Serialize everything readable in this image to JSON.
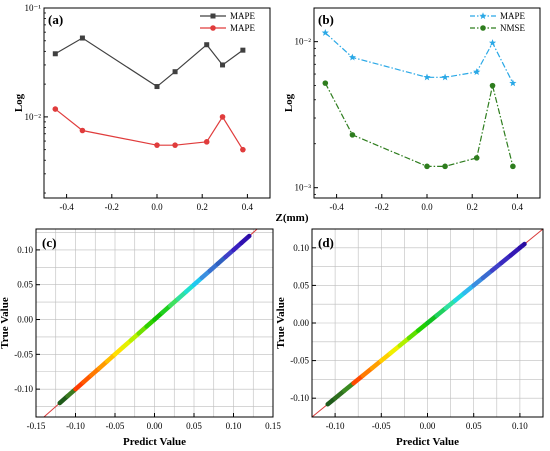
{
  "chart_data": [
    {
      "panel": "(a)",
      "type": "line",
      "yscale": "log",
      "x": [
        -0.45,
        -0.33,
        0.0,
        0.08,
        0.22,
        0.29,
        0.38
      ],
      "xlim": [
        -0.5,
        0.5
      ],
      "xticks": [
        -0.4,
        -0.2,
        0.0,
        0.2,
        0.4
      ],
      "xtick_labels": [
        "-0.4",
        "-0.2",
        "0.0",
        "0.2",
        "0.4"
      ],
      "ylim": [
        0.0018,
        0.1
      ],
      "yticks": [
        0.01,
        0.1
      ],
      "ytick_labels": [
        "10⁻²",
        "10⁻¹"
      ],
      "ylabel": "Log",
      "xlabel": "Z(mm)",
      "legend_position": "top-right",
      "series": [
        {
          "name": "MAPE",
          "color": "#404040",
          "marker": "square",
          "dash": "solid",
          "values": [
            0.038,
            0.053,
            0.019,
            0.026,
            0.046,
            0.03,
            0.041
          ]
        },
        {
          "name": "MAPE",
          "color": "#e03c3c",
          "marker": "circle",
          "dash": "solid",
          "values": [
            0.0118,
            0.0075,
            0.0055,
            0.0055,
            0.0059,
            0.01,
            0.005
          ]
        }
      ]
    },
    {
      "panel": "(b)",
      "type": "line",
      "yscale": "log",
      "x": [
        -0.45,
        -0.33,
        0.0,
        0.08,
        0.22,
        0.29,
        0.38
      ],
      "xlim": [
        -0.5,
        0.5
      ],
      "xticks": [
        -0.4,
        -0.2,
        0.0,
        0.2,
        0.4
      ],
      "xtick_labels": [
        "-0.4",
        "-0.2",
        "0.0",
        "0.2",
        "0.4"
      ],
      "ylim": [
        0.00085,
        0.017
      ],
      "yticks": [
        0.001,
        0.01
      ],
      "ytick_labels": [
        "10⁻³",
        "10⁻²"
      ],
      "ylabel": "Log",
      "xlabel": "Z(mm)",
      "legend_position": "top-right",
      "series": [
        {
          "name": "MAPE",
          "color": "#2aa8e6",
          "marker": "star",
          "dash": "dashdot",
          "values": [
            0.0115,
            0.0078,
            0.0057,
            0.0057,
            0.0062,
            0.0098,
            0.0052
          ]
        },
        {
          "name": "NMSE",
          "color": "#2e7d1e",
          "marker": "circle",
          "dash": "dashdot",
          "values": [
            0.0052,
            0.0023,
            0.0014,
            0.0014,
            0.0016,
            0.005,
            0.0014
          ]
        }
      ]
    },
    {
      "panel": "(c)",
      "type": "scatter",
      "xlabel": "Predict Value",
      "ylabel": "True Value",
      "xlim": [
        -0.15,
        0.15
      ],
      "ylim": [
        -0.14,
        0.13
      ],
      "xticks": [
        -0.15,
        -0.1,
        -0.05,
        0.0,
        0.05,
        0.1,
        0.15
      ],
      "xtick_labels": [
        "-0.15",
        "-0.10",
        "-0.05",
        "0.00",
        "0.05",
        "0.10",
        "0.15"
      ],
      "yticks": [
        -0.1,
        -0.05,
        0.0,
        0.05,
        0.1
      ],
      "ytick_labels": [
        "-0.10",
        "-0.05",
        "0.00",
        "0.05",
        "0.10"
      ],
      "grid": true,
      "reference_line": "y = x",
      "points_x": [
        -0.12,
        -0.11,
        -0.1,
        -0.09,
        -0.08,
        -0.07,
        -0.06,
        -0.05,
        -0.04,
        -0.03,
        -0.02,
        -0.01,
        0.0,
        0.01,
        0.02,
        0.03,
        0.04,
        0.05,
        0.06,
        0.07,
        0.08,
        0.09,
        0.1,
        0.11,
        0.12
      ],
      "points_y": [
        -0.12,
        -0.11,
        -0.1,
        -0.09,
        -0.08,
        -0.07,
        -0.06,
        -0.05,
        -0.04,
        -0.03,
        -0.02,
        -0.01,
        0.0,
        0.01,
        0.02,
        0.03,
        0.04,
        0.05,
        0.06,
        0.07,
        0.08,
        0.09,
        0.1,
        0.11,
        0.12
      ],
      "colors": [
        "#1f5a1a",
        "#3b7a20",
        "#ff3c00",
        "#ff5a00",
        "#ff7a00",
        "#ff9a00",
        "#ffc000",
        "#ffe000",
        "#e6f000",
        "#b8f000",
        "#70e000",
        "#30d000",
        "#10c000",
        "#20d020",
        "#40e060",
        "#30e0a0",
        "#20e0d0",
        "#20c8f0",
        "#3b8ee0",
        "#3a72d0",
        "#3060c0",
        "#4040c8",
        "#3a20c0",
        "#3010b0",
        "#2a0a9a"
      ]
    },
    {
      "panel": "(d)",
      "type": "scatter",
      "xlabel": "Predict Value",
      "ylabel": "True Value",
      "xlim": [
        -0.125,
        0.125
      ],
      "ylim": [
        -0.125,
        0.125
      ],
      "xticks": [
        -0.1,
        -0.05,
        0.0,
        0.05,
        0.1
      ],
      "xtick_labels": [
        "-0.10",
        "-0.05",
        "0.00",
        "0.05",
        "0.10"
      ],
      "yticks": [
        -0.1,
        -0.05,
        0.0,
        0.05,
        0.1
      ],
      "ytick_labels": [
        "-0.10",
        "-0.05",
        "0.00",
        "0.05",
        "0.10"
      ],
      "grid": true,
      "reference_line": "y = x",
      "points_x": [
        -0.108,
        -0.1,
        -0.09,
        -0.08,
        -0.07,
        -0.06,
        -0.05,
        -0.04,
        -0.03,
        -0.02,
        -0.01,
        0.0,
        0.01,
        0.02,
        0.03,
        0.04,
        0.05,
        0.06,
        0.07,
        0.08,
        0.09,
        0.1,
        0.105
      ],
      "points_y": [
        -0.108,
        -0.1,
        -0.09,
        -0.08,
        -0.07,
        -0.06,
        -0.05,
        -0.04,
        -0.03,
        -0.02,
        -0.01,
        0.0,
        0.01,
        0.02,
        0.03,
        0.04,
        0.05,
        0.06,
        0.07,
        0.08,
        0.09,
        0.1,
        0.105
      ],
      "colors": [
        "#1f5a1a",
        "#2e6f1e",
        "#3b8a22",
        "#ff4a00",
        "#ff7a00",
        "#ffa000",
        "#ffd000",
        "#f0f000",
        "#b0f000",
        "#60e000",
        "#20d000",
        "#10c020",
        "#20d060",
        "#30e0a0",
        "#20d8e0",
        "#30b8f0",
        "#3b8ee0",
        "#3a6ad0",
        "#4040c8",
        "#3a2ac0",
        "#3418b4",
        "#2e10a8",
        "#2a0a9a"
      ]
    }
  ]
}
